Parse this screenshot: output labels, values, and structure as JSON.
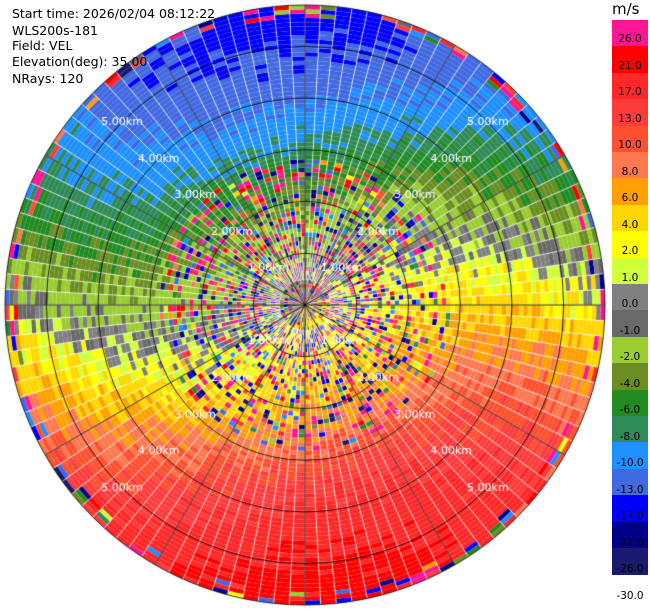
{
  "info": {
    "start_time": "Start time: 2026/02/04 08:12:22",
    "station": "WLS200s-181",
    "field": "Field: VEL",
    "elevation": "Elevation(deg): 35.00",
    "nrays": "NRays: 120"
  },
  "colorbar": {
    "unit": "m/s",
    "labels": [
      "26.0",
      "21.0",
      "17.0",
      "13.0",
      "10.0",
      "8.0",
      "6.0",
      "4.0",
      "2.0",
      "1.0",
      "0.0",
      "-1.0",
      "-2.0",
      "-4.0",
      "-6.0",
      "-8.0",
      "-10.0",
      "-13.0",
      "-17.0",
      "-21.0",
      "-26.0",
      "-30.0"
    ],
    "colors": [
      "#ff1493",
      "#ff0000",
      "#ff2828",
      "#ff3c3c",
      "#ff5030",
      "#ff7850",
      "#ffa000",
      "#ffd700",
      "#ffff00",
      "#d2ff3c",
      "#808080",
      "#696969",
      "#9acd32",
      "#6b8e23",
      "#228b22",
      "#2e8b57",
      "#1e90ff",
      "#4169e1",
      "#0000ff",
      "#00008b",
      "#191970"
    ]
  },
  "chart_data": {
    "type": "heatmap",
    "projection": "polar PPI",
    "field": "VEL",
    "unit": "m/s",
    "range_labels_km": [
      "1.00km",
      "2.00km",
      "3.00km",
      "4.00km",
      "5.00km"
    ],
    "range_rings_km": [
      1,
      2,
      3,
      4,
      5
    ],
    "max_range_km": 5.8,
    "nrays": 120,
    "elevation_deg": 35.0,
    "colorscale_bounds": [
      -30,
      -26,
      -21,
      -17,
      -13,
      -10,
      -8,
      -6,
      -4,
      -2,
      -1,
      0,
      1,
      2,
      4,
      6,
      8,
      10,
      13,
      17,
      21,
      26
    ],
    "velocity_pattern": {
      "description_free": true,
      "peak_positive_azimuth_deg": 160,
      "peak_negative_azimuth_deg": 340,
      "amplitude_by_range_km": [
        [
          0.5,
          2
        ],
        [
          1.5,
          4
        ],
        [
          2.5,
          7
        ],
        [
          3.5,
          12
        ],
        [
          4.5,
          16
        ],
        [
          5.5,
          19
        ]
      ]
    }
  }
}
